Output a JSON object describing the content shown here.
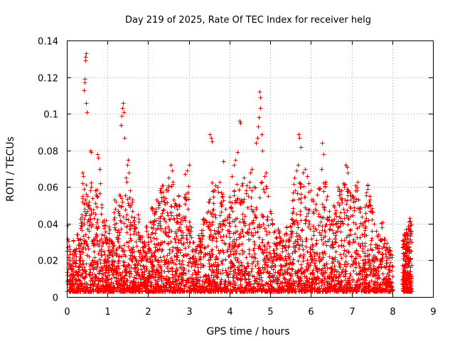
{
  "chart_data": {
    "type": "scatter",
    "title": "Day 219 of 2025, Rate Of TEC Index for receiver helg",
    "xlabel": "GPS time / hours",
    "ylabel": "ROTI / TECUs",
    "xlim": [
      0,
      9
    ],
    "ylim": [
      0,
      0.14
    ],
    "x_ticks": [
      "0",
      "1",
      "2",
      "3",
      "4",
      "5",
      "6",
      "7",
      "8",
      "9"
    ],
    "y_ticks": [
      "0",
      "0.02",
      "0.04",
      "0.06",
      "0.08",
      "0.1",
      "0.12",
      "0.14"
    ],
    "grid": true,
    "marker": "+",
    "series": [
      {
        "name": "ROTI",
        "color": "#ff0000",
        "points": [
          [
            0.02,
            0.039
          ],
          [
            0.05,
            0.028
          ],
          [
            0.08,
            0.02
          ],
          [
            0.1,
            0.015
          ],
          [
            0.15,
            0.031
          ],
          [
            0.2,
            0.026
          ],
          [
            0.25,
            0.034
          ],
          [
            0.3,
            0.029
          ],
          [
            0.36,
            0.045
          ],
          [
            0.38,
            0.068
          ],
          [
            0.4,
            0.066
          ],
          [
            0.42,
            0.113
          ],
          [
            0.43,
            0.117
          ],
          [
            0.44,
            0.119
          ],
          [
            0.45,
            0.129
          ],
          [
            0.46,
            0.131
          ],
          [
            0.47,
            0.133
          ],
          [
            0.48,
            0.106
          ],
          [
            0.49,
            0.101
          ],
          [
            0.5,
            0.055
          ],
          [
            0.55,
            0.05
          ],
          [
            0.58,
            0.08
          ],
          [
            0.6,
            0.079
          ],
          [
            0.65,
            0.046
          ],
          [
            0.72,
            0.056
          ],
          [
            0.75,
            0.078
          ],
          [
            0.77,
            0.076
          ],
          [
            0.8,
            0.07
          ],
          [
            0.82,
            0.062
          ],
          [
            0.85,
            0.049
          ],
          [
            0.9,
            0.042
          ],
          [
            0.95,
            0.039
          ],
          [
            1.0,
            0.031
          ],
          [
            1.05,
            0.037
          ],
          [
            1.1,
            0.029
          ],
          [
            1.15,
            0.046
          ],
          [
            1.2,
            0.052
          ],
          [
            1.25,
            0.047
          ],
          [
            1.3,
            0.056
          ],
          [
            1.33,
            0.094
          ],
          [
            1.35,
            0.099
          ],
          [
            1.37,
            0.103
          ],
          [
            1.38,
            0.106
          ],
          [
            1.4,
            0.101
          ],
          [
            1.42,
            0.087
          ],
          [
            1.45,
            0.065
          ],
          [
            1.48,
            0.072
          ],
          [
            1.5,
            0.075
          ],
          [
            1.52,
            0.068
          ],
          [
            1.55,
            0.058
          ],
          [
            1.6,
            0.052
          ],
          [
            1.65,
            0.041
          ],
          [
            1.7,
            0.038
          ],
          [
            1.75,
            0.045
          ],
          [
            1.8,
            0.033
          ],
          [
            1.85,
            0.03
          ],
          [
            1.9,
            0.028
          ],
          [
            1.95,
            0.036
          ],
          [
            2.0,
            0.034
          ],
          [
            2.05,
            0.041
          ],
          [
            2.1,
            0.048
          ],
          [
            2.15,
            0.045
          ],
          [
            2.2,
            0.053
          ],
          [
            2.25,
            0.05
          ],
          [
            2.3,
            0.057
          ],
          [
            2.35,
            0.061
          ],
          [
            2.4,
            0.052
          ],
          [
            2.45,
            0.058
          ],
          [
            2.5,
            0.065
          ],
          [
            2.55,
            0.072
          ],
          [
            2.58,
            0.069
          ],
          [
            2.6,
            0.063
          ],
          [
            2.65,
            0.051
          ],
          [
            2.7,
            0.048
          ],
          [
            2.75,
            0.055
          ],
          [
            2.8,
            0.04
          ],
          [
            2.85,
            0.044
          ],
          [
            2.9,
            0.067
          ],
          [
            2.95,
            0.069
          ],
          [
            3.0,
            0.072
          ],
          [
            3.05,
            0.038
          ],
          [
            3.1,
            0.03
          ],
          [
            3.15,
            0.025
          ],
          [
            3.2,
            0.028
          ],
          [
            3.25,
            0.032
          ],
          [
            3.3,
            0.035
          ],
          [
            3.35,
            0.04
          ],
          [
            3.4,
            0.042
          ],
          [
            3.45,
            0.046
          ],
          [
            3.5,
            0.052
          ],
          [
            3.52,
            0.089
          ],
          [
            3.54,
            0.087
          ],
          [
            3.56,
            0.085
          ],
          [
            3.6,
            0.058
          ],
          [
            3.65,
            0.061
          ],
          [
            3.7,
            0.06
          ],
          [
            3.75,
            0.063
          ],
          [
            3.8,
            0.057
          ],
          [
            3.85,
            0.074
          ],
          [
            3.9,
            0.048
          ],
          [
            3.95,
            0.044
          ],
          [
            4.0,
            0.052
          ],
          [
            4.05,
            0.066
          ],
          [
            4.1,
            0.072
          ],
          [
            4.15,
            0.075
          ],
          [
            4.2,
            0.079
          ],
          [
            4.25,
            0.096
          ],
          [
            4.27,
            0.095
          ],
          [
            4.3,
            0.061
          ],
          [
            4.35,
            0.065
          ],
          [
            4.4,
            0.058
          ],
          [
            4.45,
            0.055
          ],
          [
            4.5,
            0.068
          ],
          [
            4.55,
            0.07
          ],
          [
            4.6,
            0.06
          ],
          [
            4.65,
            0.084
          ],
          [
            4.68,
            0.087
          ],
          [
            4.7,
            0.093
          ],
          [
            4.72,
            0.098
          ],
          [
            4.74,
            0.112
          ],
          [
            4.75,
            0.109
          ],
          [
            4.76,
            0.103
          ],
          [
            4.78,
            0.089
          ],
          [
            4.8,
            0.08
          ],
          [
            4.85,
            0.066
          ],
          [
            4.9,
            0.068
          ],
          [
            4.95,
            0.055
          ],
          [
            5.0,
            0.047
          ],
          [
            5.05,
            0.04
          ],
          [
            5.1,
            0.036
          ],
          [
            5.15,
            0.032
          ],
          [
            5.2,
            0.035
          ],
          [
            5.25,
            0.03
          ],
          [
            5.3,
            0.028
          ],
          [
            5.35,
            0.034
          ],
          [
            5.4,
            0.038
          ],
          [
            5.45,
            0.031
          ],
          [
            5.5,
            0.036
          ],
          [
            5.55,
            0.057
          ],
          [
            5.6,
            0.065
          ],
          [
            5.65,
            0.069
          ],
          [
            5.68,
            0.072
          ],
          [
            5.7,
            0.089
          ],
          [
            5.72,
            0.087
          ],
          [
            5.75,
            0.082
          ],
          [
            5.8,
            0.068
          ],
          [
            5.85,
            0.07
          ],
          [
            5.9,
            0.066
          ],
          [
            5.95,
            0.062
          ],
          [
            6.0,
            0.058
          ],
          [
            6.05,
            0.053
          ],
          [
            6.1,
            0.048
          ],
          [
            6.15,
            0.056
          ],
          [
            6.2,
            0.059
          ],
          [
            6.25,
            0.07
          ],
          [
            6.28,
            0.084
          ],
          [
            6.3,
            0.078
          ],
          [
            6.35,
            0.06
          ],
          [
            6.4,
            0.055
          ],
          [
            6.45,
            0.047
          ],
          [
            6.5,
            0.042
          ],
          [
            6.55,
            0.05
          ],
          [
            6.6,
            0.046
          ],
          [
            6.65,
            0.06
          ],
          [
            6.7,
            0.059
          ],
          [
            6.75,
            0.058
          ],
          [
            6.8,
            0.062
          ],
          [
            6.85,
            0.072
          ],
          [
            6.88,
            0.071
          ],
          [
            6.9,
            0.068
          ],
          [
            6.95,
            0.057
          ],
          [
            7.0,
            0.055
          ],
          [
            7.05,
            0.052
          ],
          [
            7.1,
            0.058
          ],
          [
            7.15,
            0.063
          ],
          [
            7.2,
            0.048
          ],
          [
            7.25,
            0.044
          ],
          [
            7.3,
            0.041
          ],
          [
            7.35,
            0.057
          ],
          [
            7.4,
            0.061
          ],
          [
            7.45,
            0.055
          ],
          [
            7.5,
            0.046
          ],
          [
            7.55,
            0.04
          ],
          [
            7.6,
            0.036
          ],
          [
            7.65,
            0.034
          ],
          [
            7.7,
            0.031
          ],
          [
            7.75,
            0.038
          ],
          [
            7.8,
            0.029
          ],
          [
            7.85,
            0.027
          ],
          [
            7.9,
            0.025
          ],
          [
            7.95,
            0.023
          ],
          [
            8.3,
            0.033
          ],
          [
            8.35,
            0.035
          ],
          [
            8.38,
            0.037
          ],
          [
            8.4,
            0.041
          ],
          [
            8.43,
            0.043
          ],
          [
            8.45,
            0.039
          ],
          [
            8.48,
            0.03
          ]
        ]
      }
    ]
  }
}
